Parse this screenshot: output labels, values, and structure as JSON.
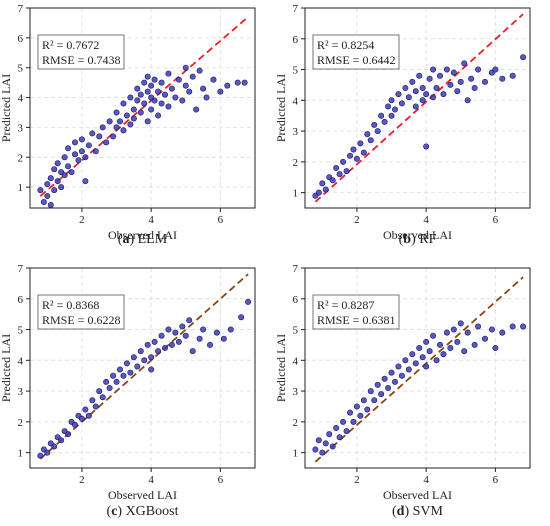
{
  "colors": {
    "point_fill": "#3b3bb3",
    "point_stroke": "#1a1a66",
    "line_red": "#e8202a",
    "line_brown": "#8b4513",
    "grid": "#e3e3e3",
    "axis": "#222222"
  },
  "chart_data": [
    {
      "type": "scatter",
      "panel": "a",
      "caption_letter": "a",
      "caption_text": "ELM",
      "xlabel": "Observed LAI",
      "ylabel": "Predicted LAI",
      "xlim": [
        0.5,
        7
      ],
      "ylim": [
        0.3,
        7
      ],
      "xticks": [
        2,
        4,
        6
      ],
      "yticks": [
        1,
        2,
        3,
        4,
        5,
        6,
        7
      ],
      "grid": true,
      "r2_text": "R² = 0.7672",
      "rmse_text": "RMSE = 0.7438",
      "fit_line": {
        "x": [
          0.8,
          6.8
        ],
        "y": [
          0.7,
          6.7
        ],
        "color_key": "line_red"
      },
      "points": [
        [
          0.8,
          0.9
        ],
        [
          0.9,
          0.5
        ],
        [
          1.0,
          0.7
        ],
        [
          1.0,
          1.1
        ],
        [
          1.1,
          0.4
        ],
        [
          1.1,
          1.3
        ],
        [
          1.2,
          0.9
        ],
        [
          1.2,
          1.6
        ],
        [
          1.3,
          1.2
        ],
        [
          1.3,
          1.8
        ],
        [
          1.4,
          1.0
        ],
        [
          1.4,
          1.5
        ],
        [
          1.5,
          1.4
        ],
        [
          1.5,
          2.0
        ],
        [
          1.6,
          1.7
        ],
        [
          1.6,
          2.3
        ],
        [
          1.7,
          1.5
        ],
        [
          1.8,
          2.1
        ],
        [
          1.8,
          2.5
        ],
        [
          1.9,
          1.9
        ],
        [
          2.0,
          2.2
        ],
        [
          2.0,
          2.6
        ],
        [
          2.1,
          1.2
        ],
        [
          2.1,
          2.0
        ],
        [
          2.2,
          2.4
        ],
        [
          2.3,
          2.8
        ],
        [
          2.4,
          2.2
        ],
        [
          2.5,
          2.7
        ],
        [
          2.6,
          3.0
        ],
        [
          2.7,
          2.5
        ],
        [
          2.8,
          3.2
        ],
        [
          2.9,
          2.7
        ],
        [
          3.0,
          3.0
        ],
        [
          3.0,
          3.5
        ],
        [
          3.1,
          3.2
        ],
        [
          3.2,
          2.9
        ],
        [
          3.2,
          3.8
        ],
        [
          3.3,
          3.4
        ],
        [
          3.4,
          3.1
        ],
        [
          3.4,
          4.0
        ],
        [
          3.5,
          3.6
        ],
        [
          3.5,
          3.3
        ],
        [
          3.6,
          3.9
        ],
        [
          3.6,
          4.3
        ],
        [
          3.7,
          3.5
        ],
        [
          3.7,
          4.1
        ],
        [
          3.8,
          3.8
        ],
        [
          3.8,
          4.5
        ],
        [
          3.9,
          3.2
        ],
        [
          3.9,
          4.2
        ],
        [
          3.9,
          4.7
        ],
        [
          4.0,
          3.6
        ],
        [
          4.0,
          4.0
        ],
        [
          4.0,
          4.4
        ],
        [
          4.1,
          3.9
        ],
        [
          4.1,
          4.6
        ],
        [
          4.2,
          3.4
        ],
        [
          4.2,
          4.2
        ],
        [
          4.3,
          3.8
        ],
        [
          4.3,
          4.5
        ],
        [
          4.4,
          4.1
        ],
        [
          4.5,
          4.8
        ],
        [
          4.5,
          3.7
        ],
        [
          4.6,
          4.3
        ],
        [
          4.7,
          4.0
        ],
        [
          4.8,
          4.6
        ],
        [
          4.9,
          3.9
        ],
        [
          5.0,
          4.4
        ],
        [
          5.0,
          5.0
        ],
        [
          5.1,
          4.2
        ],
        [
          5.2,
          4.7
        ],
        [
          5.3,
          3.6
        ],
        [
          5.4,
          4.9
        ],
        [
          5.5,
          4.3
        ],
        [
          5.6,
          4.0
        ],
        [
          5.8,
          4.6
        ],
        [
          6.0,
          4.2
        ],
        [
          6.2,
          4.4
        ],
        [
          6.5,
          4.5
        ],
        [
          6.7,
          4.5
        ]
      ]
    },
    {
      "type": "scatter",
      "panel": "b",
      "caption_letter": "b",
      "caption_text": "RF",
      "xlabel": "Observed LAI",
      "ylabel": "Predicted LAI",
      "xlim": [
        0.5,
        7
      ],
      "ylim": [
        0.5,
        7
      ],
      "xticks": [
        2,
        4,
        6
      ],
      "yticks": [
        1,
        2,
        3,
        4,
        5,
        6,
        7
      ],
      "grid": true,
      "r2_text": "R² = 0.8254",
      "rmse_text": "RMSE = 0.6442",
      "fit_line": {
        "x": [
          0.8,
          6.8
        ],
        "y": [
          0.7,
          6.8
        ],
        "color_key": "line_red"
      },
      "points": [
        [
          0.8,
          0.9
        ],
        [
          0.9,
          1.0
        ],
        [
          1.0,
          1.3
        ],
        [
          1.1,
          1.1
        ],
        [
          1.2,
          1.5
        ],
        [
          1.3,
          1.4
        ],
        [
          1.4,
          1.8
        ],
        [
          1.5,
          1.6
        ],
        [
          1.6,
          2.0
        ],
        [
          1.7,
          1.7
        ],
        [
          1.8,
          2.2
        ],
        [
          1.9,
          2.4
        ],
        [
          2.0,
          2.1
        ],
        [
          2.1,
          2.6
        ],
        [
          2.2,
          2.3
        ],
        [
          2.3,
          2.9
        ],
        [
          2.4,
          2.7
        ],
        [
          2.5,
          3.2
        ],
        [
          2.6,
          3.0
        ],
        [
          2.7,
          3.5
        ],
        [
          2.8,
          3.3
        ],
        [
          2.9,
          3.8
        ],
        [
          3.0,
          3.5
        ],
        [
          3.0,
          4.0
        ],
        [
          3.1,
          3.7
        ],
        [
          3.2,
          4.2
        ],
        [
          3.3,
          3.9
        ],
        [
          3.4,
          4.4
        ],
        [
          3.5,
          4.1
        ],
        [
          3.6,
          4.6
        ],
        [
          3.7,
          4.3
        ],
        [
          3.7,
          3.8
        ],
        [
          3.8,
          4.8
        ],
        [
          3.9,
          4.0
        ],
        [
          3.9,
          4.4
        ],
        [
          4.0,
          2.5
        ],
        [
          4.0,
          4.2
        ],
        [
          4.1,
          4.7
        ],
        [
          4.2,
          4.1
        ],
        [
          4.2,
          5.0
        ],
        [
          4.3,
          4.4
        ],
        [
          4.4,
          4.8
        ],
        [
          4.5,
          4.2
        ],
        [
          4.6,
          5.0
        ],
        [
          4.7,
          4.5
        ],
        [
          4.8,
          4.9
        ],
        [
          4.9,
          4.3
        ],
        [
          5.0,
          4.6
        ],
        [
          5.1,
          5.2
        ],
        [
          5.2,
          4.0
        ],
        [
          5.3,
          4.7
        ],
        [
          5.4,
          4.4
        ],
        [
          5.5,
          5.0
        ],
        [
          5.7,
          4.6
        ],
        [
          5.9,
          4.9
        ],
        [
          6.0,
          5.0
        ],
        [
          6.2,
          4.7
        ],
        [
          6.5,
          4.8
        ],
        [
          6.8,
          5.4
        ]
      ]
    },
    {
      "type": "scatter",
      "panel": "c",
      "caption_letter": "c",
      "caption_text": "XGBoost",
      "xlabel": "Observed LAI",
      "ylabel": "Predicted LAI",
      "xlim": [
        0.5,
        7
      ],
      "ylim": [
        0.5,
        7
      ],
      "xticks": [
        2,
        4,
        6
      ],
      "yticks": [
        1,
        2,
        3,
        4,
        5,
        6,
        7
      ],
      "grid": true,
      "r2_text": "R² = 0.8368",
      "rmse_text": "RMSE = 0.6228",
      "fit_line": {
        "x": [
          0.8,
          6.8
        ],
        "y": [
          0.8,
          6.8
        ],
        "color_key": "line_brown"
      },
      "points": [
        [
          0.8,
          0.9
        ],
        [
          0.9,
          1.1
        ],
        [
          1.0,
          1.0
        ],
        [
          1.1,
          1.3
        ],
        [
          1.2,
          1.2
        ],
        [
          1.3,
          1.5
        ],
        [
          1.4,
          1.4
        ],
        [
          1.5,
          1.7
        ],
        [
          1.6,
          1.6
        ],
        [
          1.7,
          2.0
        ],
        [
          1.8,
          1.9
        ],
        [
          1.9,
          2.2
        ],
        [
          2.0,
          2.1
        ],
        [
          2.1,
          2.4
        ],
        [
          2.2,
          2.2
        ],
        [
          2.3,
          2.7
        ],
        [
          2.4,
          2.5
        ],
        [
          2.5,
          3.0
        ],
        [
          2.6,
          2.8
        ],
        [
          2.7,
          3.3
        ],
        [
          2.8,
          3.1
        ],
        [
          2.9,
          3.5
        ],
        [
          3.0,
          3.3
        ],
        [
          3.1,
          3.7
        ],
        [
          3.2,
          3.5
        ],
        [
          3.3,
          3.9
        ],
        [
          3.4,
          3.6
        ],
        [
          3.5,
          4.1
        ],
        [
          3.6,
          3.8
        ],
        [
          3.7,
          4.3
        ],
        [
          3.8,
          4.0
        ],
        [
          3.9,
          4.5
        ],
        [
          4.0,
          4.1
        ],
        [
          4.0,
          3.7
        ],
        [
          4.1,
          4.6
        ],
        [
          4.2,
          4.3
        ],
        [
          4.3,
          4.8
        ],
        [
          4.4,
          4.4
        ],
        [
          4.5,
          5.0
        ],
        [
          4.6,
          4.5
        ],
        [
          4.7,
          4.9
        ],
        [
          4.8,
          4.6
        ],
        [
          4.9,
          5.1
        ],
        [
          5.0,
          4.8
        ],
        [
          5.1,
          5.3
        ],
        [
          5.2,
          4.3
        ],
        [
          5.4,
          4.7
        ],
        [
          5.5,
          5.0
        ],
        [
          5.7,
          4.5
        ],
        [
          5.9,
          4.9
        ],
        [
          6.1,
          4.7
        ],
        [
          6.3,
          5.0
        ],
        [
          6.6,
          5.4
        ],
        [
          6.8,
          5.9
        ]
      ]
    },
    {
      "type": "scatter",
      "panel": "d",
      "caption_letter": "d",
      "caption_text": "SVM",
      "xlabel": "Observed LAI",
      "ylabel": "Predicted LAI",
      "xlim": [
        0.5,
        7
      ],
      "ylim": [
        0.5,
        7
      ],
      "xticks": [
        2,
        4,
        6
      ],
      "yticks": [
        1,
        2,
        3,
        4,
        5,
        6,
        7
      ],
      "grid": true,
      "r2_text": "R² = 0.8287",
      "rmse_text": "RMSE = 0.6381",
      "fit_line": {
        "x": [
          0.8,
          6.8
        ],
        "y": [
          0.7,
          6.7
        ],
        "color_key": "line_brown"
      },
      "points": [
        [
          0.8,
          1.1
        ],
        [
          0.9,
          1.4
        ],
        [
          1.0,
          1.0
        ],
        [
          1.1,
          1.3
        ],
        [
          1.2,
          1.6
        ],
        [
          1.3,
          1.2
        ],
        [
          1.4,
          1.8
        ],
        [
          1.5,
          1.5
        ],
        [
          1.6,
          2.0
        ],
        [
          1.7,
          1.7
        ],
        [
          1.8,
          2.3
        ],
        [
          1.9,
          2.0
        ],
        [
          2.0,
          2.5
        ],
        [
          2.1,
          2.2
        ],
        [
          2.2,
          2.7
        ],
        [
          2.3,
          2.4
        ],
        [
          2.4,
          3.0
        ],
        [
          2.5,
          2.7
        ],
        [
          2.6,
          3.2
        ],
        [
          2.7,
          2.9
        ],
        [
          2.8,
          3.4
        ],
        [
          2.9,
          3.1
        ],
        [
          3.0,
          3.6
        ],
        [
          3.1,
          3.3
        ],
        [
          3.2,
          3.8
        ],
        [
          3.3,
          3.5
        ],
        [
          3.4,
          4.0
        ],
        [
          3.5,
          3.7
        ],
        [
          3.6,
          4.2
        ],
        [
          3.7,
          3.9
        ],
        [
          3.8,
          4.4
        ],
        [
          3.9,
          4.1
        ],
        [
          4.0,
          4.6
        ],
        [
          4.0,
          3.8
        ],
        [
          4.1,
          4.3
        ],
        [
          4.2,
          4.8
        ],
        [
          4.3,
          4.0
        ],
        [
          4.4,
          4.5
        ],
        [
          4.5,
          4.2
        ],
        [
          4.6,
          4.9
        ],
        [
          4.7,
          4.4
        ],
        [
          4.8,
          5.0
        ],
        [
          4.9,
          4.6
        ],
        [
          5.0,
          5.2
        ],
        [
          5.1,
          4.3
        ],
        [
          5.2,
          4.9
        ],
        [
          5.4,
          4.5
        ],
        [
          5.5,
          5.1
        ],
        [
          5.7,
          4.7
        ],
        [
          5.9,
          5.0
        ],
        [
          6.0,
          4.4
        ],
        [
          6.2,
          4.9
        ],
        [
          6.5,
          5.1
        ],
        [
          6.8,
          5.1
        ]
      ]
    }
  ]
}
